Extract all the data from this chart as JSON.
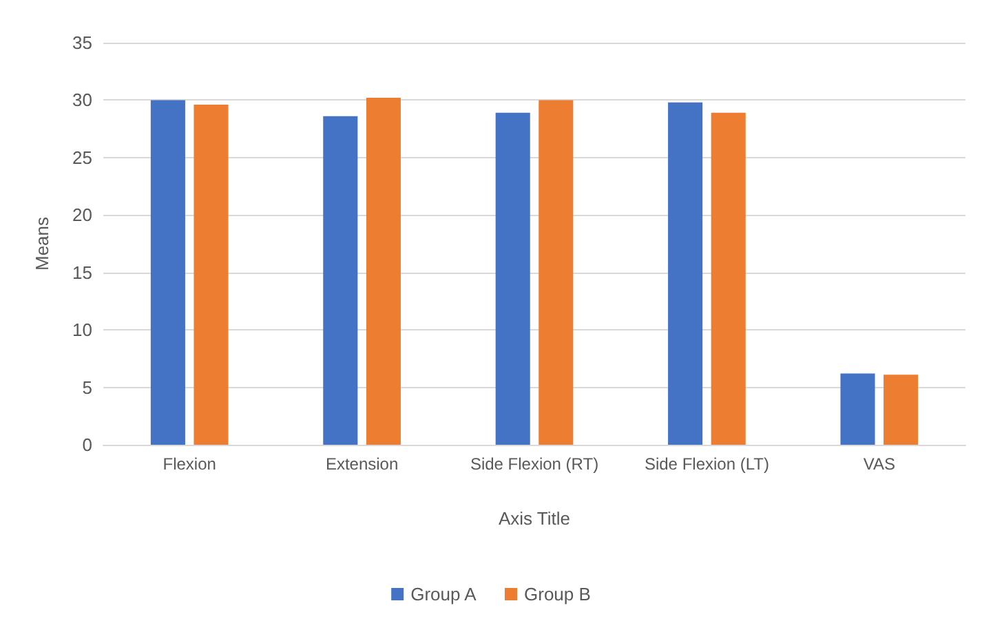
{
  "chart_data": {
    "type": "bar",
    "xlabel": "Axis Title",
    "ylabel": "Means",
    "categories": [
      "Flexion",
      "Extension",
      "Side Flexion (RT)",
      "Side Flexion (LT)",
      "VAS"
    ],
    "series": [
      {
        "name": "Group A",
        "color": "#4472c4",
        "values": [
          30,
          28.6,
          28.9,
          29.8,
          6.2
        ]
      },
      {
        "name": "Group B",
        "color": "#ed7d31",
        "values": [
          29.6,
          30.2,
          30,
          28.9,
          6.1
        ]
      }
    ],
    "ylim": [
      0,
      35
    ],
    "yticks": [
      0,
      5,
      10,
      15,
      20,
      25,
      30,
      35
    ],
    "grid": "y",
    "legend": "bottom"
  }
}
